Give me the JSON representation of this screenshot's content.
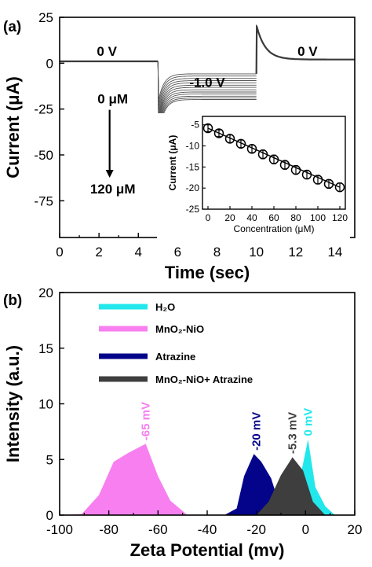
{
  "chart_data": [
    {
      "panel": "(a)",
      "type": "line",
      "xlabel": "Time (sec)",
      "ylabel": "Current (μA)",
      "xlim": [
        0,
        15
      ],
      "ylim": [
        -95,
        25
      ],
      "xticks": [
        0,
        2,
        4,
        6,
        8,
        10,
        12,
        14
      ],
      "yticks": [
        25,
        0,
        -25,
        -50,
        -75
      ],
      "annotations": [
        {
          "text": "0 V",
          "x": 2.4,
          "y": 4
        },
        {
          "text": "-1.0 V",
          "x": 7.5,
          "y": -13
        },
        {
          "text": "0 V",
          "x": 12.6,
          "y": 4
        },
        {
          "text": "0 μM",
          "x": 2.7,
          "y": -22
        },
        {
          "text": "120 μM",
          "x": 2.7,
          "y": -71
        }
      ],
      "segments": [
        {
          "label": "0 V",
          "t_start": 0,
          "t_end": 5,
          "current": 1
        },
        {
          "label": "-1.0 V",
          "t_start": 5,
          "t_end": 10,
          "concentration_uM": [
            0,
            10,
            20,
            30,
            40,
            50,
            60,
            70,
            80,
            90,
            100,
            110,
            120
          ],
          "steady_current": [
            -5.8,
            -7,
            -8.3,
            -9.5,
            -10.7,
            -12,
            -13.2,
            -14.5,
            -15.7,
            -16.8,
            -18,
            -19,
            -19.8
          ],
          "transient_min": [
            -20,
            -22,
            -24,
            -26,
            -28,
            -29.5,
            -31,
            -32,
            -33.5,
            -35,
            -36,
            -37.5,
            -39
          ]
        },
        {
          "label": "0 V",
          "t_start": 10,
          "t_end": 15,
          "peak_current": 20,
          "current_end": 2
        }
      ]
    },
    {
      "panel": "(a) inset",
      "type": "scatter",
      "xlabel": "Concentration  (μM)",
      "ylabel": "Current (μA)",
      "xlim": [
        -5,
        125
      ],
      "ylim": [
        -25,
        -3
      ],
      "xticks": [
        0,
        20,
        40,
        60,
        80,
        100,
        120
      ],
      "yticks": [
        -5,
        -10,
        -15,
        -20,
        -25
      ],
      "x": [
        0,
        10,
        20,
        30,
        40,
        50,
        60,
        70,
        80,
        90,
        100,
        110,
        120
      ],
      "y": [
        -5.8,
        -7,
        -8.3,
        -9.5,
        -10.7,
        -12,
        -13.2,
        -14.5,
        -15.7,
        -16.8,
        -18,
        -19,
        -19.8
      ],
      "error": [
        0.8,
        0.8,
        0.9,
        0.9,
        0.9,
        1,
        1,
        1,
        1,
        1,
        1,
        1,
        1
      ]
    },
    {
      "panel": "(b)",
      "type": "area",
      "xlabel": "Zeta Potential (mv)",
      "ylabel": "Intensity (a.u.)",
      "xlim": [
        -100,
        20
      ],
      "ylim": [
        0,
        20
      ],
      "xticks": [
        -100,
        -80,
        -60,
        -40,
        -20,
        0,
        20
      ],
      "yticks": [
        0,
        5,
        10,
        15,
        20
      ],
      "legend": "top-center",
      "series": [
        {
          "name": "H₂O",
          "color": "#22e8ec",
          "peak_label": "0 mV",
          "x": [
            -8,
            -3,
            1,
            4,
            8,
            12
          ],
          "y": [
            0,
            2.5,
            6.8,
            2.5,
            0.8,
            0
          ]
        },
        {
          "name": "MnO₂-NiO",
          "color": "#f77ff0",
          "peak_label": "-65 mV",
          "x": [
            -100,
            -91,
            -84,
            -78,
            -72,
            -65,
            -60,
            -55,
            -48
          ],
          "y": [
            0,
            0.1,
            1.8,
            4.8,
            5.6,
            6.4,
            3.5,
            1.3,
            0
          ]
        },
        {
          "name": "Atrazine",
          "color": "#04048a",
          "peak_label": "-20 mV",
          "x": [
            -33,
            -28,
            -25,
            -21,
            -18,
            -14,
            -10
          ],
          "y": [
            0,
            0.6,
            3.5,
            5.5,
            4.8,
            3.3,
            0.5
          ]
        },
        {
          "name": "MnO₂-NiO+ Atrazine",
          "color": "#3e3e3e",
          "peak_label": "-5.3 mV",
          "x": [
            -20,
            -15,
            -10,
            -5.3,
            -1,
            3,
            8
          ],
          "y": [
            0,
            1.2,
            3.6,
            5.2,
            4,
            1.2,
            0
          ]
        }
      ]
    }
  ]
}
